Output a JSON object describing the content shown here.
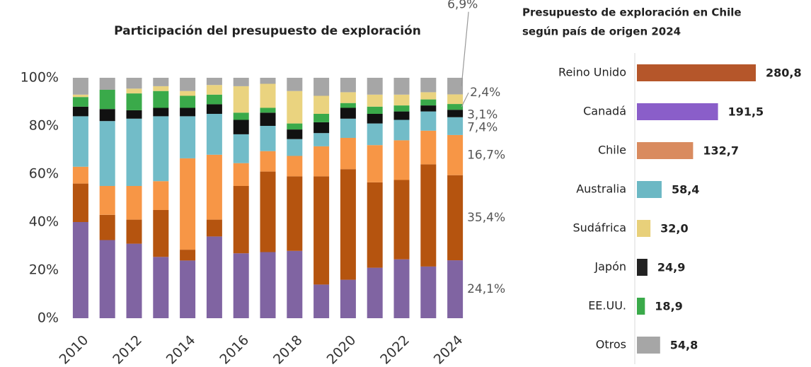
{
  "chart_data": [
    {
      "type": "bar",
      "stacked": true,
      "title": "Participación del presupuesto de exploración",
      "categories": [
        "2010",
        null,
        "2012",
        null,
        "2014",
        null,
        "2016",
        null,
        "2018",
        null,
        "2020",
        null,
        "2022",
        null,
        "2024"
      ],
      "ylim": [
        0,
        100
      ],
      "yticks": [
        {
          "value": 0,
          "label": "0%"
        },
        {
          "value": 20,
          "label": "20%"
        },
        {
          "value": 40,
          "label": "40%"
        },
        {
          "value": 60,
          "label": "60%"
        },
        {
          "value": 80,
          "label": "80%"
        },
        {
          "value": 100,
          "label": "100%"
        }
      ],
      "grid": false,
      "series": [
        {
          "color": "#8064a2",
          "values": [
            40,
            32.5,
            31,
            25.5,
            24,
            34,
            27,
            27.5,
            28,
            14,
            16,
            21,
            24.5,
            21.5,
            24.1
          ],
          "value_labels": [
            null,
            null,
            null,
            null,
            null,
            null,
            null,
            null,
            null,
            null,
            null,
            null,
            null,
            null,
            "24,1%"
          ]
        },
        {
          "color": "#b5540f",
          "values": [
            16,
            10.5,
            10,
            19.5,
            4.5,
            7,
            28,
            33.5,
            31,
            45,
            46,
            35.5,
            33,
            42.5,
            35.4
          ],
          "value_labels": [
            null,
            null,
            null,
            null,
            null,
            null,
            null,
            null,
            null,
            null,
            null,
            null,
            null,
            null,
            "35,4%"
          ]
        },
        {
          "color": "#f79646",
          "values": [
            7,
            12,
            14,
            12,
            38,
            27,
            9.5,
            8.5,
            8.5,
            12.5,
            13,
            15.5,
            16.5,
            14,
            16.7
          ],
          "value_labels": [
            null,
            null,
            null,
            null,
            null,
            null,
            null,
            null,
            null,
            null,
            null,
            null,
            null,
            null,
            "16,7%"
          ]
        },
        {
          "color": "#72bcc8",
          "values": [
            21,
            27,
            28,
            27,
            17.5,
            17,
            12,
            10.5,
            7,
            5.5,
            8,
            9,
            8.5,
            8,
            7.4
          ],
          "value_labels": [
            null,
            null,
            null,
            null,
            null,
            null,
            null,
            null,
            null,
            null,
            null,
            null,
            null,
            null,
            "7,4%"
          ]
        },
        {
          "color": "#111111",
          "values": [
            4,
            5,
            3.5,
            3.5,
            3.5,
            4,
            6,
            5.5,
            4,
            4.5,
            4.5,
            4,
            3.5,
            2.5,
            3.1
          ],
          "value_labels": [
            null,
            null,
            null,
            null,
            null,
            null,
            null,
            null,
            null,
            null,
            null,
            null,
            null,
            null,
            "3,1%"
          ]
        },
        {
          "color": "#3aaa4a",
          "values": [
            4,
            8,
            7,
            7,
            5,
            4,
            3,
            2,
            2.5,
            3.5,
            2,
            3,
            2.5,
            2.5,
            2.4
          ],
          "value_labels": [
            null,
            null,
            null,
            null,
            null,
            null,
            null,
            null,
            null,
            null,
            null,
            null,
            null,
            null,
            "2,4%"
          ]
        },
        {
          "color": "#ead37f",
          "values": [
            1,
            0,
            2,
            2,
            2,
            4,
            11,
            10,
            13.5,
            7.5,
            4.5,
            5,
            4.5,
            3,
            4.0
          ]
        },
        {
          "color": "#a6a6a6",
          "values": [
            7,
            5,
            4.5,
            3.5,
            5.5,
            3,
            3.5,
            2.5,
            5.5,
            7.5,
            6,
            7,
            7,
            6,
            6.9
          ],
          "value_labels": [
            null,
            null,
            null,
            null,
            null,
            null,
            null,
            null,
            null,
            null,
            null,
            null,
            null,
            null,
            "6,9%"
          ]
        }
      ]
    },
    {
      "type": "bar",
      "orientation": "horizontal",
      "title": [
        "Presupuesto de exploración en Chile",
        "según país de origen 2024"
      ],
      "categories": [
        "Reino Unido",
        "Canadá",
        "Chile",
        "Australia",
        "Sudáfrica",
        "Japón",
        "EE.UU.",
        "Otros"
      ],
      "values": [
        280.8,
        191.5,
        132.7,
        58.4,
        32.0,
        24.9,
        18.9,
        54.8
      ],
      "value_labels": [
        "280,8",
        "191,5",
        "132,7",
        "58,4",
        "32,0",
        "24,9",
        "18,9",
        "54,8"
      ],
      "colors": [
        "#b5562a",
        "#8a5ec9",
        "#d98b5f",
        "#6cb8c4",
        "#e8d07a",
        "#222222",
        "#3aaa4a",
        "#a6a6a6"
      ]
    }
  ]
}
